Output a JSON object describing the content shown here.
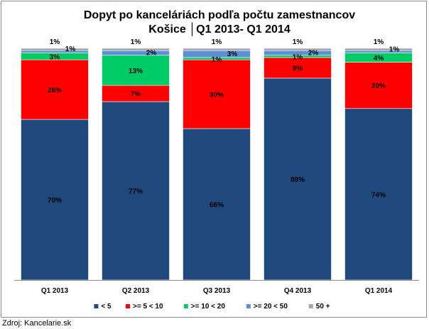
{
  "chart_data": {
    "type": "bar",
    "stacked": true,
    "title_line1": "Dopyt po kanceláriách  podľa počtu zamestnancov",
    "title_line2": "Košice  │Q1 2013-  Q1 2014",
    "xlabel": "",
    "ylabel": "",
    "ylim": [
      0,
      100
    ],
    "grid": false,
    "legend_position": "bottom",
    "categories": [
      "Q1 2013",
      "Q2 2013",
      "Q3 2013",
      "Q4 2013",
      "Q1 2014"
    ],
    "series": [
      {
        "name": "< 5",
        "color": "#1f497d",
        "values": [
          70,
          77,
          66,
          88,
          74
        ],
        "labels": [
          "70%",
          "77%",
          "66%",
          "88%",
          "74%"
        ]
      },
      {
        "name": ">= 5 < 10",
        "color": "#ff0000",
        "values": [
          26,
          7,
          30,
          9,
          20
        ],
        "labels": [
          "26%",
          "7%",
          "30%",
          "9%",
          "20%"
        ]
      },
      {
        "name": ">= 10 < 20",
        "color": "#00cc66",
        "values": [
          3,
          13,
          1,
          1,
          4
        ],
        "labels": [
          "3%",
          "13%",
          "1%",
          "1%",
          "4%"
        ]
      },
      {
        "name": ">= 20 < 50",
        "color": "#5b8fd6",
        "values": [
          1,
          2,
          3,
          2,
          1
        ],
        "labels": [
          "1%",
          "2%",
          "3%",
          "2%",
          "1%"
        ]
      },
      {
        "name": "50 +",
        "color": "#a6a6a6",
        "values": [
          1,
          1,
          1,
          1,
          1
        ],
        "labels": [
          "1%",
          "1%",
          "1%",
          "1%",
          "1%"
        ]
      }
    ]
  },
  "source_note": "Zdroj: Kancelarie.sk"
}
